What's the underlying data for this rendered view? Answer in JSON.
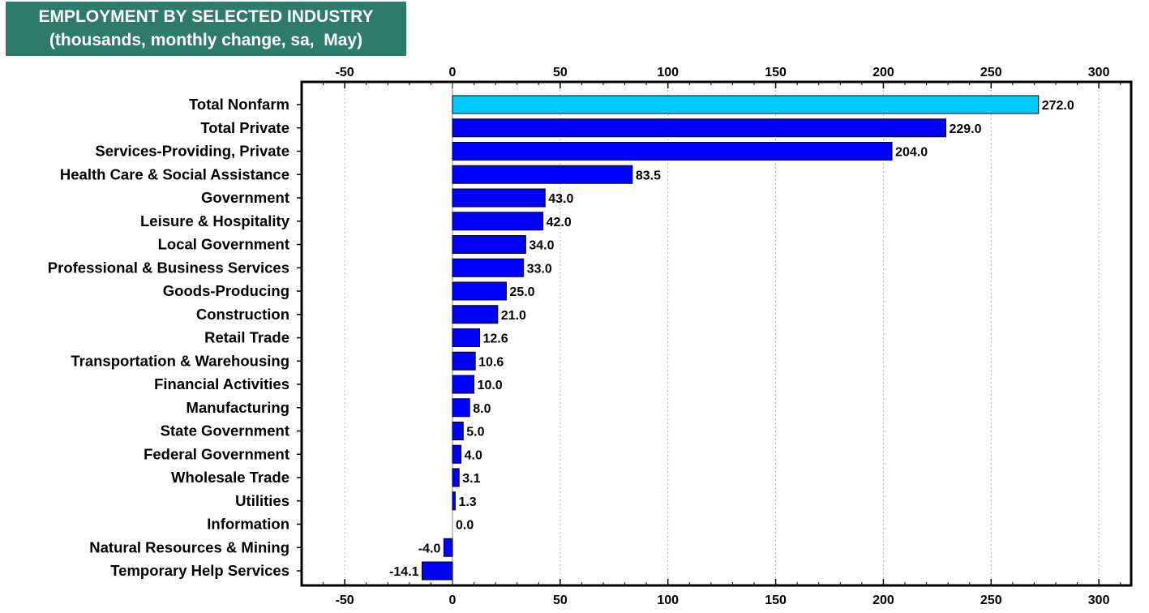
{
  "title_box": {
    "line1": "EMPLOYMENT BY SELECTED INDUSTRY",
    "line2": "(thousands, monthly change, sa,  May)"
  },
  "chart_data": {
    "type": "bar",
    "orientation": "horizontal",
    "categories": [
      "Total Nonfarm",
      "Total Private",
      "Services-Providing, Private",
      "Health Care & Social Assistance",
      "Government",
      "Leisure & Hospitality",
      "Local Government",
      "Professional & Business Services",
      "Goods-Producing",
      "Construction",
      "Retail Trade",
      "Transportation & Warehousing",
      "Financial Activities",
      "Manufacturing",
      "State Government",
      "Federal Government",
      "Wholesale Trade",
      "Utilities",
      "Information",
      "Natural Resources & Mining",
      "Temporary Help Services"
    ],
    "values": [
      272.0,
      229.0,
      204.0,
      83.5,
      43.0,
      42.0,
      34.0,
      33.0,
      25.0,
      21.0,
      12.6,
      10.6,
      10.0,
      8.0,
      5.0,
      4.0,
      3.1,
      1.3,
      0.0,
      -4.0,
      -14.1
    ],
    "value_labels": [
      "272.0",
      "229.0",
      "204.0",
      "83.5",
      "43.0",
      "42.0",
      "34.0",
      "33.0",
      "25.0",
      "21.0",
      "12.6",
      "10.6",
      "10.0",
      "8.0",
      "5.0",
      "4.0",
      "3.1",
      "1.3",
      "0.0",
      "-4.0",
      "-14.1"
    ],
    "xlim": [
      -70,
      315
    ],
    "x_ticks": [
      -50,
      0,
      50,
      100,
      150,
      200,
      250,
      300
    ],
    "x_tick_labels": [
      "-50",
      "0",
      "50",
      "100",
      "150",
      "200",
      "250",
      "300"
    ],
    "grid": "vertical dotted",
    "colors": {
      "highlight": "#00ccff",
      "bar": "#0000ff",
      "title_bg": "#2e7b6b"
    }
  }
}
